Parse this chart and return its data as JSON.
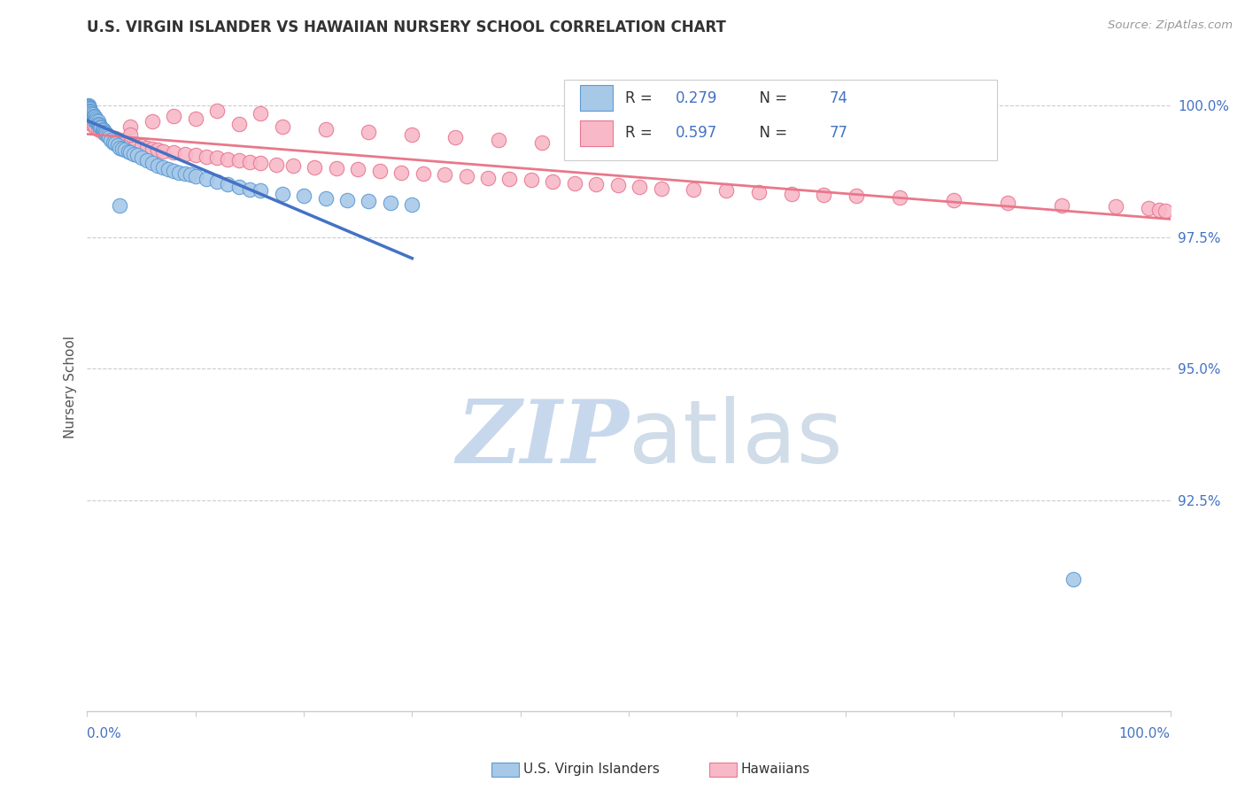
{
  "title": "U.S. VIRGIN ISLANDER VS HAWAIIAN NURSERY SCHOOL CORRELATION CHART",
  "source": "Source: ZipAtlas.com",
  "ylabel": "Nursery School",
  "y_tick_values": [
    0.925,
    0.95,
    0.975,
    1.0
  ],
  "y_tick_labels": [
    "92.5%",
    "95.0%",
    "97.5%",
    "100.0%"
  ],
  "x_range": [
    0.0,
    1.0
  ],
  "y_range": [
    0.885,
    1.008
  ],
  "color_virgin_fill": "#a8c8e8",
  "color_virgin_edge": "#5B9BD5",
  "color_hawaiian_fill": "#f8b8c8",
  "color_hawaiian_edge": "#e87890",
  "color_line_virgin": "#4472C4",
  "color_line_hawaiian": "#e8788a",
  "watermark_zip_color": "#c8d8ec",
  "watermark_atlas_color": "#d0dce8",
  "title_color": "#333333",
  "source_color": "#999999",
  "tick_color": "#4472C4",
  "legend_r1": "R = 0.279",
  "legend_n1": "N = 74",
  "legend_r2": "R = 0.597",
  "legend_n2": "N = 77",
  "scatter_virgin_x": [
    0.001,
    0.001,
    0.001,
    0.001,
    0.001,
    0.001,
    0.002,
    0.002,
    0.002,
    0.002,
    0.002,
    0.003,
    0.003,
    0.003,
    0.004,
    0.004,
    0.005,
    0.005,
    0.006,
    0.006,
    0.007,
    0.007,
    0.008,
    0.008,
    0.009,
    0.01,
    0.01,
    0.011,
    0.012,
    0.013,
    0.014,
    0.015,
    0.016,
    0.017,
    0.018,
    0.019,
    0.02,
    0.022,
    0.024,
    0.026,
    0.028,
    0.03,
    0.032,
    0.035,
    0.038,
    0.04,
    0.043,
    0.046,
    0.05,
    0.055,
    0.06,
    0.065,
    0.07,
    0.075,
    0.08,
    0.085,
    0.09,
    0.095,
    0.1,
    0.11,
    0.12,
    0.13,
    0.14,
    0.15,
    0.16,
    0.18,
    0.2,
    0.22,
    0.24,
    0.26,
    0.28,
    0.3,
    0.03,
    0.91
  ],
  "scatter_virgin_y": [
    1.0,
    0.9998,
    0.9996,
    0.9994,
    0.9992,
    0.999,
    0.9995,
    0.9993,
    0.999,
    0.9988,
    0.9985,
    0.9988,
    0.9985,
    0.9982,
    0.9985,
    0.998,
    0.9983,
    0.9978,
    0.998,
    0.9975,
    0.9978,
    0.9972,
    0.9975,
    0.997,
    0.9972,
    0.997,
    0.9965,
    0.9963,
    0.996,
    0.9958,
    0.9955,
    0.9952,
    0.995,
    0.9948,
    0.9945,
    0.9942,
    0.994,
    0.9935,
    0.993,
    0.9928,
    0.9925,
    0.992,
    0.9918,
    0.9915,
    0.9912,
    0.991,
    0.9908,
    0.9905,
    0.99,
    0.9895,
    0.989,
    0.9885,
    0.9882,
    0.9878,
    0.9875,
    0.9872,
    0.987,
    0.9868,
    0.9865,
    0.986,
    0.9855,
    0.985,
    0.9845,
    0.984,
    0.9838,
    0.9832,
    0.9828,
    0.9824,
    0.982,
    0.9818,
    0.9815,
    0.9812,
    0.981,
    0.91
  ],
  "scatter_hawaiian_x": [
    0.001,
    0.002,
    0.004,
    0.006,
    0.008,
    0.01,
    0.012,
    0.015,
    0.018,
    0.022,
    0.026,
    0.03,
    0.035,
    0.04,
    0.045,
    0.05,
    0.055,
    0.06,
    0.065,
    0.07,
    0.08,
    0.09,
    0.1,
    0.11,
    0.12,
    0.13,
    0.14,
    0.15,
    0.16,
    0.175,
    0.19,
    0.21,
    0.23,
    0.25,
    0.27,
    0.29,
    0.31,
    0.33,
    0.35,
    0.37,
    0.39,
    0.41,
    0.43,
    0.45,
    0.47,
    0.49,
    0.51,
    0.53,
    0.56,
    0.59,
    0.62,
    0.65,
    0.68,
    0.71,
    0.75,
    0.8,
    0.85,
    0.9,
    0.95,
    0.98,
    0.99,
    0.995,
    0.04,
    0.08,
    0.12,
    0.16,
    0.04,
    0.06,
    0.1,
    0.14,
    0.18,
    0.22,
    0.26,
    0.3,
    0.34,
    0.38,
    0.42
  ],
  "scatter_hawaiian_y": [
    0.9975,
    0.997,
    0.9965,
    0.9962,
    0.9958,
    0.9955,
    0.9952,
    0.9948,
    0.9945,
    0.994,
    0.9938,
    0.9935,
    0.9932,
    0.9928,
    0.9925,
    0.9922,
    0.992,
    0.9918,
    0.9915,
    0.9912,
    0.991,
    0.9908,
    0.9905,
    0.9902,
    0.99,
    0.9898,
    0.9895,
    0.9892,
    0.989,
    0.9888,
    0.9885,
    0.9882,
    0.988,
    0.9878,
    0.9875,
    0.9872,
    0.987,
    0.9868,
    0.9865,
    0.9862,
    0.986,
    0.9858,
    0.9855,
    0.9852,
    0.985,
    0.9848,
    0.9845,
    0.9842,
    0.984,
    0.9838,
    0.9835,
    0.9832,
    0.983,
    0.9828,
    0.9825,
    0.982,
    0.9815,
    0.981,
    0.9808,
    0.9805,
    0.9802,
    0.98,
    0.996,
    0.998,
    0.999,
    0.9985,
    0.9945,
    0.997,
    0.9975,
    0.9965,
    0.996,
    0.9955,
    0.995,
    0.9945,
    0.994,
    0.9935,
    0.993
  ]
}
